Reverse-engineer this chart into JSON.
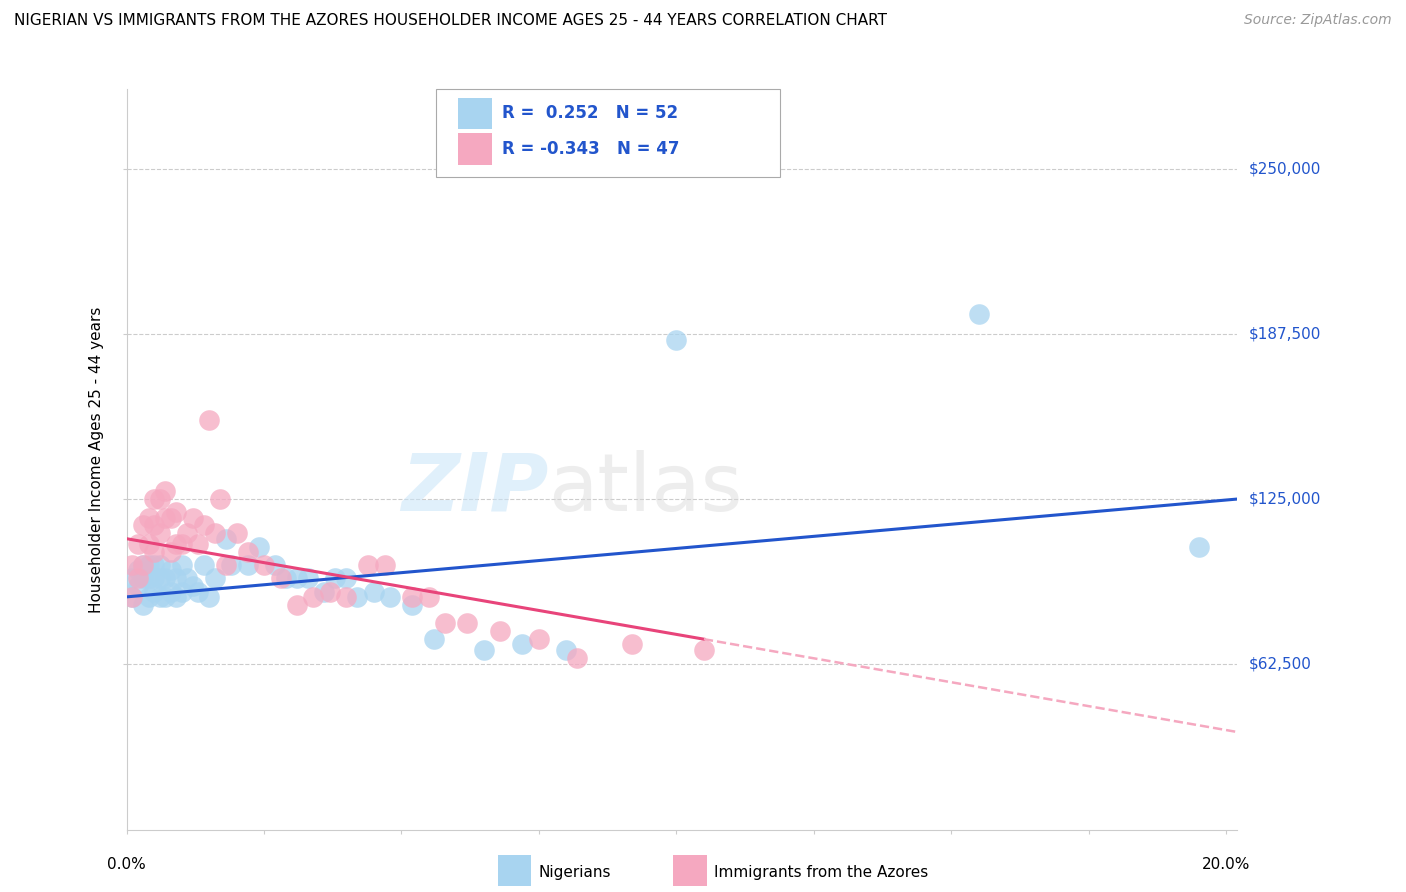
{
  "title": "NIGERIAN VS IMMIGRANTS FROM THE AZORES HOUSEHOLDER INCOME AGES 25 - 44 YEARS CORRELATION CHART",
  "source": "Source: ZipAtlas.com",
  "ylabel": "Householder Income Ages 25 - 44 years",
  "ytick_labels": [
    "$62,500",
    "$125,000",
    "$187,500",
    "$250,000"
  ],
  "ytick_values": [
    62500,
    125000,
    187500,
    250000
  ],
  "ymin": 0,
  "ymax": 280000,
  "xmin": 0.0,
  "xmax": 0.202,
  "legend_r_nigerian": "0.252",
  "legend_n_nigerian": "52",
  "legend_r_azores": "-0.343",
  "legend_n_azores": "47",
  "nigerian_color": "#a8d4f0",
  "azores_color": "#f5a8c0",
  "nigerian_line_color": "#2255cc",
  "azores_line_color": "#e8447a",
  "azores_dash_color": "#f5a8c0",
  "watermark_zip": "ZIP",
  "watermark_atlas": "atlas",
  "nigerian_x": [
    0.001,
    0.001,
    0.002,
    0.002,
    0.003,
    0.003,
    0.003,
    0.004,
    0.004,
    0.004,
    0.005,
    0.005,
    0.005,
    0.006,
    0.006,
    0.006,
    0.007,
    0.007,
    0.008,
    0.008,
    0.009,
    0.009,
    0.01,
    0.01,
    0.011,
    0.012,
    0.013,
    0.014,
    0.015,
    0.016,
    0.018,
    0.019,
    0.022,
    0.024,
    0.027,
    0.029,
    0.031,
    0.033,
    0.036,
    0.038,
    0.04,
    0.042,
    0.045,
    0.048,
    0.052,
    0.056,
    0.065,
    0.072,
    0.08,
    0.1,
    0.155,
    0.195
  ],
  "nigerian_y": [
    88000,
    95000,
    92000,
    98000,
    85000,
    95000,
    100000,
    88000,
    95000,
    100000,
    90000,
    95000,
    100000,
    88000,
    95000,
    100000,
    88000,
    95000,
    90000,
    98000,
    88000,
    95000,
    90000,
    100000,
    95000,
    92000,
    90000,
    100000,
    88000,
    95000,
    110000,
    100000,
    100000,
    107000,
    100000,
    95000,
    95000,
    95000,
    90000,
    95000,
    95000,
    88000,
    90000,
    88000,
    85000,
    72000,
    68000,
    70000,
    68000,
    185000,
    195000,
    107000
  ],
  "azores_x": [
    0.001,
    0.001,
    0.002,
    0.002,
    0.003,
    0.003,
    0.004,
    0.004,
    0.005,
    0.005,
    0.005,
    0.006,
    0.006,
    0.007,
    0.007,
    0.008,
    0.008,
    0.009,
    0.009,
    0.01,
    0.011,
    0.012,
    0.013,
    0.014,
    0.015,
    0.016,
    0.017,
    0.018,
    0.02,
    0.022,
    0.025,
    0.028,
    0.031,
    0.034,
    0.037,
    0.04,
    0.044,
    0.047,
    0.052,
    0.055,
    0.058,
    0.062,
    0.068,
    0.075,
    0.082,
    0.092,
    0.105
  ],
  "azores_y": [
    88000,
    100000,
    95000,
    108000,
    100000,
    115000,
    108000,
    118000,
    105000,
    115000,
    125000,
    112000,
    125000,
    118000,
    128000,
    105000,
    118000,
    108000,
    120000,
    108000,
    112000,
    118000,
    108000,
    115000,
    155000,
    112000,
    125000,
    100000,
    112000,
    105000,
    100000,
    95000,
    85000,
    88000,
    90000,
    88000,
    100000,
    100000,
    88000,
    88000,
    78000,
    78000,
    75000,
    72000,
    65000,
    70000,
    68000
  ]
}
